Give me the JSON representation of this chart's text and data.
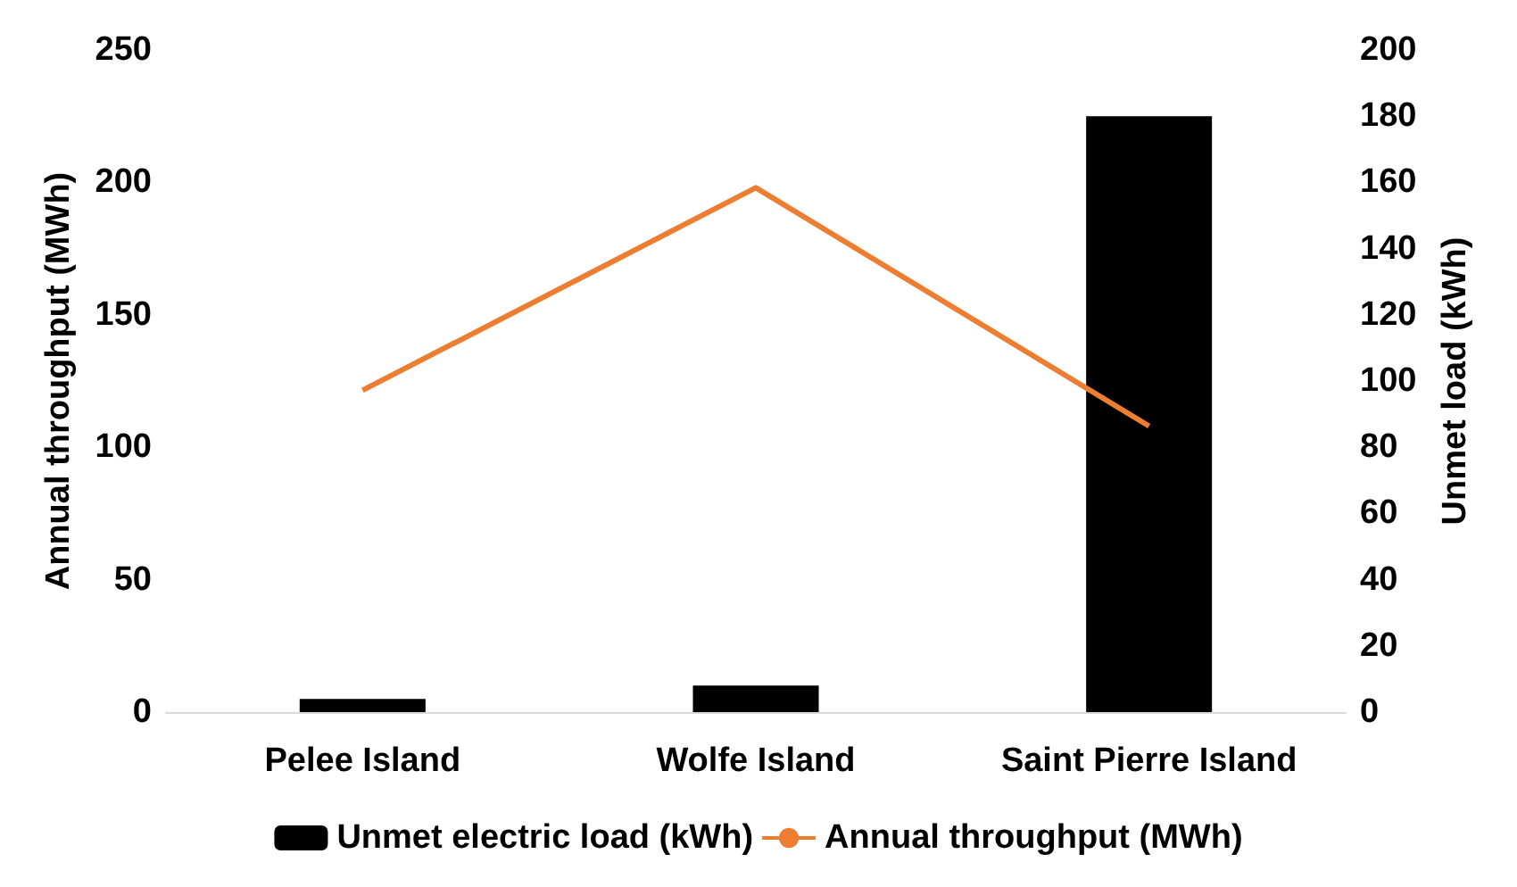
{
  "chart_data": {
    "type": "bar",
    "categories": [
      "Pelee Island",
      "Wolfe Island",
      "Saint Pierre Island"
    ],
    "ylabel": "Annual throughput (MWh)",
    "y2label": "Unmet load (kWh)",
    "series": [
      {
        "name": "Unmet electric load (kWh)",
        "color": "#000000",
        "axis": "y2",
        "values": [
          4,
          8,
          180
        ]
      },
      {
        "name": "Annual throughput (MWh)",
        "type": "line",
        "color": "#ed7d31",
        "values": [
          121.5,
          198,
          108
        ]
      }
    ],
    "ylim": [
      0,
      250
    ],
    "yticks": [
      0,
      50,
      100,
      150,
      200,
      250
    ],
    "y2lim": [
      0,
      200
    ],
    "y2ticks": [
      0,
      20,
      40,
      60,
      80,
      100,
      120,
      140,
      160,
      180,
      200
    ],
    "grid": false,
    "legend": "bottom",
    "marker": "none"
  }
}
